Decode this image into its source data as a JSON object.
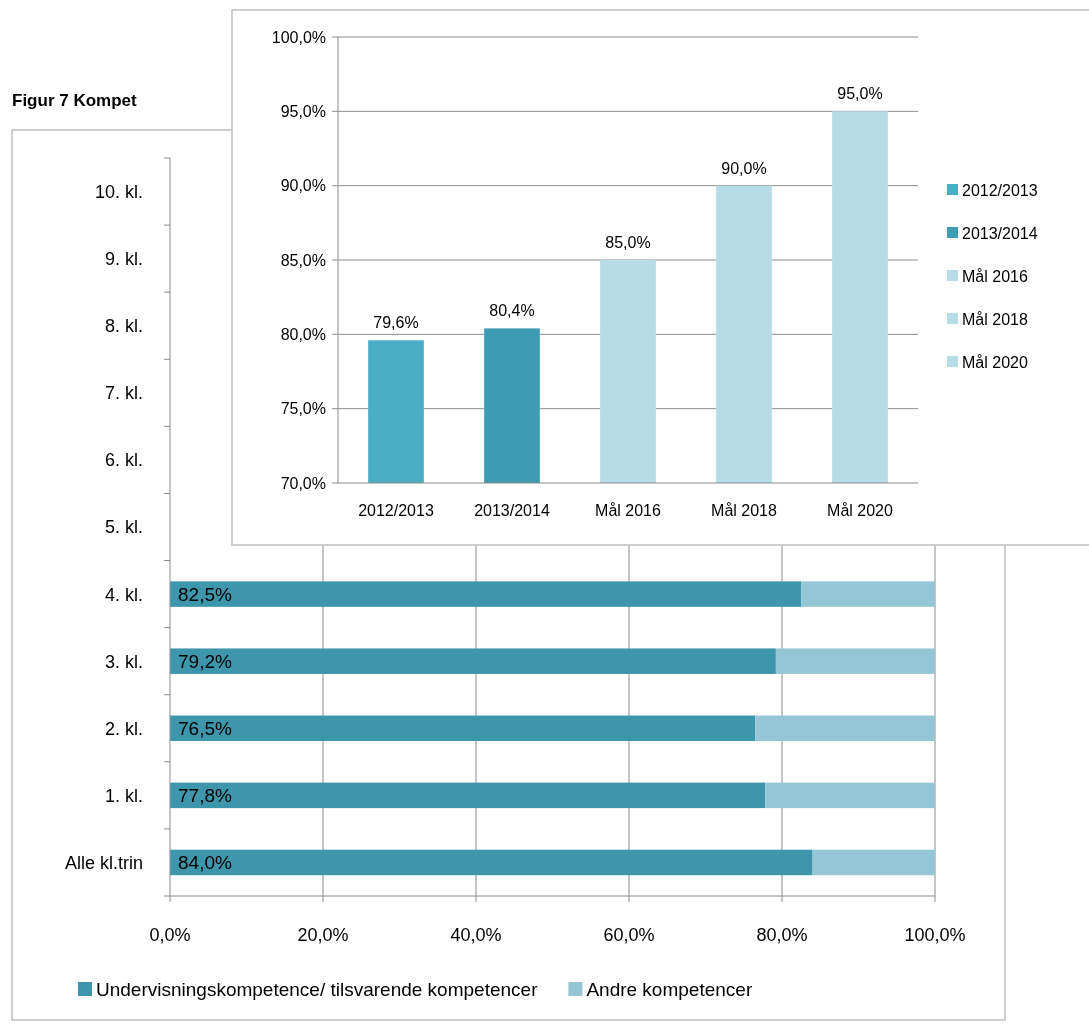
{
  "chart_data": [
    {
      "type": "bar",
      "title": "Figur 7  Kompet",
      "orientation": "horizontal",
      "stacked": true,
      "categories": [
        "10. kl.",
        "9. kl.",
        "8. kl.",
        "7. kl.",
        "6. kl.",
        "5. kl.",
        "4. kl.",
        "3. kl.",
        "2. kl.",
        "1. kl.",
        "Alle kl.trin"
      ],
      "series": [
        {
          "name": "Undervisningskompetence/ tilsvarende kompetencer",
          "color": "#3e96ad",
          "values": [
            null,
            null,
            null,
            null,
            null,
            null,
            82.5,
            79.2,
            76.5,
            77.8,
            84.0
          ],
          "value_labels": [
            null,
            null,
            null,
            null,
            null,
            null,
            "82,5%",
            "79,2%",
            "76,5%",
            "77,8%",
            "84,0%"
          ]
        },
        {
          "name": "Andre kompetencer",
          "color": "#94c6d6",
          "values": [
            null,
            null,
            null,
            null,
            null,
            null,
            17.5,
            20.8,
            23.5,
            22.2,
            16.0
          ]
        }
      ],
      "xlim": [
        0,
        100
      ],
      "xticks": [
        {
          "value": 0,
          "label": "0,0%"
        },
        {
          "value": 20,
          "label": "20,0%"
        },
        {
          "value": 40,
          "label": "40,0%"
        },
        {
          "value": 60,
          "label": "60,0%"
        },
        {
          "value": 80,
          "label": "80,0%"
        },
        {
          "value": 100,
          "label": "100,0%"
        }
      ],
      "grid": "x",
      "legend": "bottom"
    },
    {
      "type": "bar",
      "categories": [
        "2012/2013",
        "2013/2014",
        "Mål 2016",
        "Mål 2018",
        "Mål 2020"
      ],
      "series": [
        {
          "name": "2012/2013",
          "color": "#4aaec6",
          "values": [
            79.6,
            null,
            null,
            null,
            null
          ],
          "value_labels": [
            "79,6%",
            null,
            null,
            null,
            null
          ]
        },
        {
          "name": "2013/2014",
          "color": "#3d9cb3",
          "values": [
            null,
            80.4,
            null,
            null,
            null
          ],
          "value_labels": [
            null,
            "80,4%",
            null,
            null,
            null
          ]
        },
        {
          "name": "Mål 2016",
          "color": "#b5dce7",
          "values": [
            null,
            null,
            85.0,
            null,
            null
          ],
          "value_labels": [
            null,
            null,
            "85,0%",
            null,
            null
          ]
        },
        {
          "name": "Mål 2018",
          "color": "#b5dce7",
          "values": [
            null,
            null,
            null,
            90.0,
            null
          ],
          "value_labels": [
            null,
            null,
            null,
            "90,0%",
            null
          ]
        },
        {
          "name": "Mål 2020",
          "color": "#b5dce7",
          "values": [
            null,
            null,
            null,
            null,
            95.0
          ],
          "value_labels": [
            null,
            null,
            null,
            null,
            "95,0%"
          ]
        }
      ],
      "ylim": [
        70,
        100
      ],
      "yticks": [
        {
          "value": 70,
          "label": "70,0%"
        },
        {
          "value": 75,
          "label": "75,0%"
        },
        {
          "value": 80,
          "label": "80,0%"
        },
        {
          "value": 85,
          "label": "85,0%"
        },
        {
          "value": 90,
          "label": "90,0%"
        },
        {
          "value": 95,
          "label": "95,0%"
        },
        {
          "value": 100,
          "label": "100,0%"
        }
      ],
      "grid": "y",
      "legend": "right"
    }
  ]
}
